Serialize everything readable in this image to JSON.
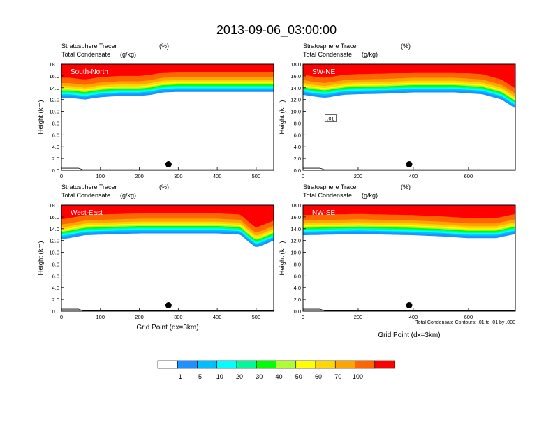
{
  "chart_data": {
    "type": "heatmap",
    "title": "2013-09-06_03:00:00",
    "xlabel": "Grid Point (dx=3km)",
    "ylabel": "Height (km)",
    "shade_label": "Stratosphere Tracer",
    "shade_units": "(%)",
    "contour_label": "Total Condensate",
    "contour_units": "(g/kg)",
    "contour_note": "Total Condensate Contours: .01 to .01 by .000",
    "contour_level_label": ".01",
    "ylim": [
      0,
      18
    ],
    "yticks": [
      "0.0",
      "2.0",
      "4.0",
      "6.0",
      "8.0",
      "10.0",
      "12.0",
      "14.0",
      "16.0",
      "18.0"
    ],
    "colorbar": {
      "colors": [
        "#ffffff",
        "#1e90ff",
        "#00bfff",
        "#00ffff",
        "#00fa9a",
        "#00ff00",
        "#adff2f",
        "#ffff00",
        "#ffd700",
        "#ffa500",
        "#ff6600",
        "#ff0000"
      ],
      "labels": [
        "1",
        "5",
        "10",
        "20",
        "30",
        "40",
        "50",
        "60",
        "70",
        "100"
      ]
    },
    "panels": [
      {
        "name": "South-North",
        "xlim": [
          0,
          545
        ],
        "xticks": [
          "0",
          "100",
          "200",
          "300",
          "400",
          "500"
        ],
        "xtick_values": [
          0,
          100,
          200,
          300,
          400,
          500
        ],
        "point_x": 275,
        "point_height_km": 1.0,
        "tropopause_km": [
          [
            0,
            12.3
          ],
          [
            20,
            12.3
          ],
          [
            60,
            12.0
          ],
          [
            100,
            12.4
          ],
          [
            150,
            12.6
          ],
          [
            200,
            12.6
          ],
          [
            230,
            12.8
          ],
          [
            260,
            13.2
          ],
          [
            300,
            13.3
          ],
          [
            400,
            13.3
          ],
          [
            545,
            13.3
          ]
        ]
      },
      {
        "name": "SW-NE",
        "xlim": [
          0,
          770
        ],
        "xticks": [
          "0",
          "200",
          "400",
          "600"
        ],
        "xtick_values": [
          0,
          200,
          400,
          600
        ],
        "point_x": 385,
        "point_height_km": 1.0,
        "tropopause_km": [
          [
            0,
            12.8
          ],
          [
            40,
            12.5
          ],
          [
            80,
            12.3
          ],
          [
            150,
            12.8
          ],
          [
            200,
            12.9
          ],
          [
            300,
            13.0
          ],
          [
            400,
            13.2
          ],
          [
            550,
            13.2
          ],
          [
            650,
            12.9
          ],
          [
            720,
            12.0
          ],
          [
            770,
            10.5
          ]
        ]
      },
      {
        "name": "West-East",
        "xlim": [
          0,
          545
        ],
        "xticks": [
          "0",
          "100",
          "200",
          "300",
          "400",
          "500"
        ],
        "xtick_values": [
          0,
          100,
          200,
          300,
          400,
          500
        ],
        "point_x": 275,
        "point_height_km": 1.0,
        "tropopause_km": [
          [
            0,
            12.2
          ],
          [
            20,
            12.4
          ],
          [
            60,
            12.9
          ],
          [
            100,
            13.0
          ],
          [
            200,
            13.2
          ],
          [
            300,
            13.2
          ],
          [
            400,
            13.2
          ],
          [
            460,
            13.0
          ],
          [
            480,
            11.8
          ],
          [
            500,
            10.8
          ],
          [
            520,
            11.3
          ],
          [
            545,
            12.0
          ]
        ]
      },
      {
        "name": "NW-SE",
        "xlim": [
          0,
          770
        ],
        "xticks": [
          "0",
          "200",
          "400",
          "600"
        ],
        "xtick_values": [
          0,
          200,
          400,
          600
        ],
        "point_x": 385,
        "point_height_km": 1.0,
        "tropopause_km": [
          [
            0,
            12.9
          ],
          [
            100,
            13.0
          ],
          [
            200,
            13.1
          ],
          [
            300,
            13.0
          ],
          [
            400,
            12.9
          ],
          [
            500,
            12.7
          ],
          [
            600,
            12.4
          ],
          [
            700,
            12.4
          ],
          [
            740,
            12.8
          ],
          [
            770,
            13.1
          ]
        ]
      }
    ]
  }
}
